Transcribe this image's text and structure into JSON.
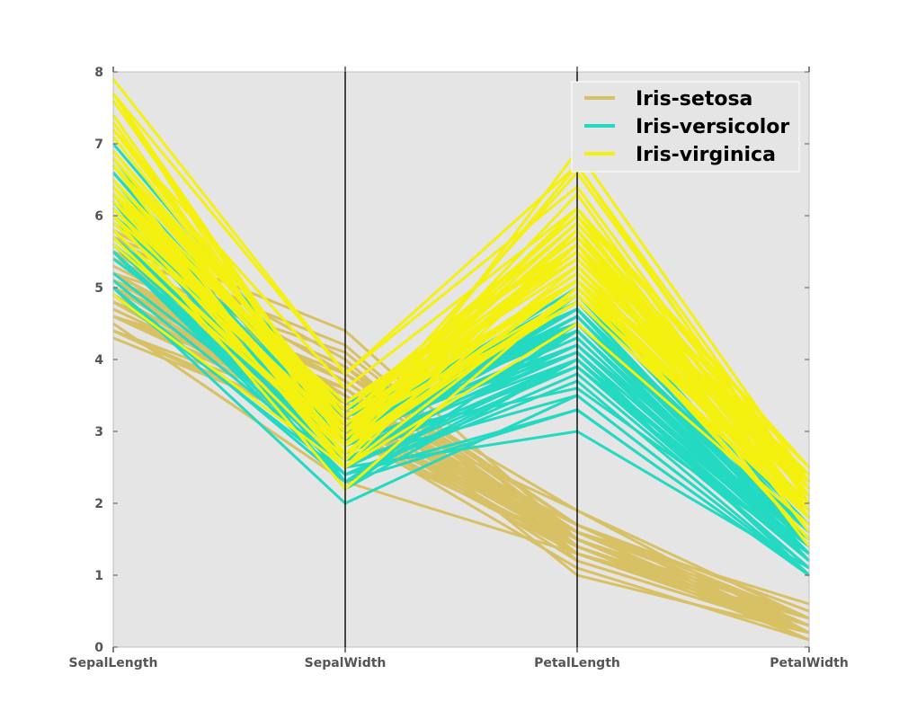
{
  "chart_data": {
    "type": "parallel-coordinates",
    "title": "",
    "axes": [
      "SepalLength",
      "SepalWidth",
      "PetalLength",
      "PetalWidth"
    ],
    "ylim": [
      0,
      8
    ],
    "yticks": [
      0,
      1,
      2,
      3,
      4,
      5,
      6,
      7,
      8
    ],
    "grid": false,
    "legend_position": "top-right",
    "background_color": "#e5e5e5",
    "series": [
      {
        "name": "Iris-setosa",
        "color": "#d8c065",
        "rows": [
          [
            5.1,
            3.5,
            1.4,
            0.2
          ],
          [
            4.9,
            3.0,
            1.4,
            0.2
          ],
          [
            4.7,
            3.2,
            1.3,
            0.2
          ],
          [
            4.6,
            3.1,
            1.5,
            0.2
          ],
          [
            5.0,
            3.6,
            1.4,
            0.2
          ],
          [
            5.4,
            3.9,
            1.7,
            0.4
          ],
          [
            4.6,
            3.4,
            1.4,
            0.3
          ],
          [
            5.0,
            3.4,
            1.5,
            0.2
          ],
          [
            4.4,
            2.9,
            1.4,
            0.2
          ],
          [
            4.9,
            3.1,
            1.5,
            0.1
          ],
          [
            5.4,
            3.7,
            1.5,
            0.2
          ],
          [
            4.8,
            3.4,
            1.6,
            0.2
          ],
          [
            4.8,
            3.0,
            1.4,
            0.1
          ],
          [
            4.3,
            3.0,
            1.1,
            0.1
          ],
          [
            5.8,
            4.0,
            1.2,
            0.2
          ],
          [
            5.7,
            4.4,
            1.5,
            0.4
          ],
          [
            5.4,
            3.9,
            1.3,
            0.4
          ],
          [
            5.1,
            3.5,
            1.4,
            0.3
          ],
          [
            5.7,
            3.8,
            1.7,
            0.3
          ],
          [
            5.1,
            3.8,
            1.5,
            0.3
          ],
          [
            5.4,
            3.4,
            1.7,
            0.2
          ],
          [
            5.1,
            3.7,
            1.5,
            0.4
          ],
          [
            4.6,
            3.6,
            1.0,
            0.2
          ],
          [
            5.1,
            3.3,
            1.7,
            0.5
          ],
          [
            4.8,
            3.4,
            1.9,
            0.2
          ],
          [
            5.0,
            3.0,
            1.6,
            0.2
          ],
          [
            5.0,
            3.4,
            1.6,
            0.4
          ],
          [
            5.2,
            3.5,
            1.5,
            0.2
          ],
          [
            5.2,
            3.4,
            1.4,
            0.2
          ],
          [
            4.7,
            3.2,
            1.6,
            0.2
          ],
          [
            4.8,
            3.1,
            1.6,
            0.2
          ],
          [
            5.4,
            3.4,
            1.5,
            0.4
          ],
          [
            5.2,
            4.1,
            1.5,
            0.1
          ],
          [
            5.5,
            4.2,
            1.4,
            0.2
          ],
          [
            4.9,
            3.1,
            1.5,
            0.1
          ],
          [
            5.0,
            3.2,
            1.2,
            0.2
          ],
          [
            5.5,
            3.5,
            1.3,
            0.2
          ],
          [
            4.4,
            3.0,
            1.3,
            0.2
          ],
          [
            5.1,
            3.4,
            1.5,
            0.2
          ],
          [
            5.0,
            3.5,
            1.3,
            0.3
          ],
          [
            4.5,
            2.3,
            1.3,
            0.3
          ],
          [
            4.4,
            3.2,
            1.3,
            0.2
          ],
          [
            5.0,
            3.5,
            1.6,
            0.6
          ],
          [
            5.1,
            3.8,
            1.9,
            0.4
          ],
          [
            4.8,
            3.0,
            1.4,
            0.3
          ],
          [
            5.1,
            3.8,
            1.6,
            0.2
          ],
          [
            4.6,
            3.2,
            1.4,
            0.2
          ],
          [
            5.3,
            3.7,
            1.5,
            0.2
          ],
          [
            5.0,
            3.3,
            1.4,
            0.2
          ]
        ]
      },
      {
        "name": "Iris-versicolor",
        "color": "#23d9c2",
        "rows": [
          [
            7.0,
            3.2,
            4.7,
            1.4
          ],
          [
            6.4,
            3.2,
            4.5,
            1.5
          ],
          [
            6.9,
            3.1,
            4.9,
            1.5
          ],
          [
            5.5,
            2.3,
            4.0,
            1.3
          ],
          [
            6.5,
            2.8,
            4.6,
            1.5
          ],
          [
            5.7,
            2.8,
            4.5,
            1.3
          ],
          [
            6.3,
            3.3,
            4.7,
            1.6
          ],
          [
            4.9,
            2.4,
            3.3,
            1.0
          ],
          [
            6.6,
            2.9,
            4.6,
            1.3
          ],
          [
            5.2,
            2.7,
            3.9,
            1.4
          ],
          [
            5.0,
            2.0,
            3.5,
            1.0
          ],
          [
            5.9,
            3.0,
            4.2,
            1.5
          ],
          [
            6.0,
            2.2,
            4.0,
            1.0
          ],
          [
            6.1,
            2.9,
            4.7,
            1.4
          ],
          [
            5.6,
            2.9,
            3.6,
            1.3
          ],
          [
            6.7,
            3.1,
            4.4,
            1.4
          ],
          [
            5.6,
            3.0,
            4.5,
            1.5
          ],
          [
            5.8,
            2.7,
            4.1,
            1.0
          ],
          [
            6.2,
            2.2,
            4.5,
            1.5
          ],
          [
            5.6,
            2.5,
            3.9,
            1.1
          ],
          [
            5.9,
            3.2,
            4.8,
            1.8
          ],
          [
            6.1,
            2.8,
            4.0,
            1.3
          ],
          [
            6.3,
            2.5,
            4.9,
            1.5
          ],
          [
            6.1,
            2.8,
            4.7,
            1.2
          ],
          [
            6.4,
            2.9,
            4.3,
            1.3
          ],
          [
            6.6,
            3.0,
            4.4,
            1.4
          ],
          [
            6.8,
            2.8,
            4.8,
            1.4
          ],
          [
            6.7,
            3.0,
            5.0,
            1.7
          ],
          [
            6.0,
            2.9,
            4.5,
            1.5
          ],
          [
            5.7,
            2.6,
            3.5,
            1.0
          ],
          [
            5.5,
            2.4,
            3.8,
            1.1
          ],
          [
            5.5,
            2.4,
            3.7,
            1.0
          ],
          [
            5.8,
            2.7,
            3.9,
            1.2
          ],
          [
            6.0,
            2.7,
            5.1,
            1.6
          ],
          [
            5.4,
            3.0,
            4.5,
            1.5
          ],
          [
            6.0,
            3.4,
            4.5,
            1.6
          ],
          [
            6.7,
            3.1,
            4.7,
            1.5
          ],
          [
            6.3,
            2.3,
            4.4,
            1.3
          ],
          [
            5.6,
            3.0,
            4.1,
            1.3
          ],
          [
            5.5,
            2.5,
            4.0,
            1.3
          ],
          [
            5.5,
            2.6,
            4.4,
            1.2
          ],
          [
            6.1,
            3.0,
            4.6,
            1.4
          ],
          [
            5.8,
            2.6,
            4.0,
            1.2
          ],
          [
            5.0,
            2.3,
            3.3,
            1.0
          ],
          [
            5.6,
            2.7,
            4.2,
            1.3
          ],
          [
            5.7,
            3.0,
            4.2,
            1.2
          ],
          [
            5.7,
            2.9,
            4.2,
            1.3
          ],
          [
            6.2,
            2.9,
            4.3,
            1.3
          ],
          [
            5.1,
            2.5,
            3.0,
            1.1
          ],
          [
            5.7,
            2.8,
            4.1,
            1.3
          ]
        ]
      },
      {
        "name": "Iris-virginica",
        "color": "#f4f00f",
        "rows": [
          [
            6.3,
            3.3,
            6.0,
            2.5
          ],
          [
            5.8,
            2.7,
            5.1,
            1.9
          ],
          [
            7.1,
            3.0,
            5.9,
            2.1
          ],
          [
            6.3,
            2.9,
            5.6,
            1.8
          ],
          [
            6.5,
            3.0,
            5.8,
            2.2
          ],
          [
            7.6,
            3.0,
            6.6,
            2.1
          ],
          [
            4.9,
            2.5,
            4.5,
            1.7
          ],
          [
            7.3,
            2.9,
            6.3,
            1.8
          ],
          [
            6.7,
            2.5,
            5.8,
            1.8
          ],
          [
            7.2,
            3.6,
            6.1,
            2.5
          ],
          [
            6.5,
            3.2,
            5.1,
            2.0
          ],
          [
            6.4,
            2.7,
            5.3,
            1.9
          ],
          [
            6.8,
            3.0,
            5.5,
            2.1
          ],
          [
            5.7,
            2.5,
            5.0,
            2.0
          ],
          [
            5.8,
            2.8,
            5.1,
            2.4
          ],
          [
            6.4,
            3.2,
            5.3,
            2.3
          ],
          [
            6.5,
            3.0,
            5.5,
            1.8
          ],
          [
            7.7,
            3.8,
            6.7,
            2.2
          ],
          [
            7.7,
            2.6,
            6.9,
            2.3
          ],
          [
            6.0,
            2.2,
            5.0,
            1.5
          ],
          [
            6.9,
            3.2,
            5.7,
            2.3
          ],
          [
            5.6,
            2.8,
            4.9,
            2.0
          ],
          [
            7.7,
            2.8,
            6.7,
            2.0
          ],
          [
            6.3,
            2.7,
            4.9,
            1.8
          ],
          [
            6.7,
            3.3,
            5.7,
            2.1
          ],
          [
            7.2,
            3.2,
            6.0,
            1.8
          ],
          [
            6.2,
            2.8,
            4.8,
            1.8
          ],
          [
            6.1,
            3.0,
            4.9,
            1.8
          ],
          [
            6.4,
            2.8,
            5.6,
            2.1
          ],
          [
            7.2,
            3.0,
            5.8,
            1.6
          ],
          [
            7.4,
            2.8,
            6.1,
            1.9
          ],
          [
            7.9,
            3.8,
            6.4,
            2.0
          ],
          [
            6.4,
            2.8,
            5.6,
            2.2
          ],
          [
            6.3,
            2.8,
            5.1,
            1.5
          ],
          [
            6.1,
            2.6,
            5.6,
            1.4
          ],
          [
            7.7,
            3.0,
            6.1,
            2.3
          ],
          [
            6.3,
            3.4,
            5.6,
            2.4
          ],
          [
            6.4,
            3.1,
            5.5,
            1.8
          ],
          [
            6.0,
            3.0,
            4.8,
            1.8
          ],
          [
            6.9,
            3.1,
            5.4,
            2.1
          ],
          [
            6.7,
            3.1,
            5.6,
            2.4
          ],
          [
            6.9,
            3.1,
            5.1,
            2.3
          ],
          [
            5.8,
            2.7,
            5.1,
            1.9
          ],
          [
            6.8,
            3.2,
            5.9,
            2.3
          ],
          [
            6.7,
            3.3,
            5.7,
            2.5
          ],
          [
            6.7,
            3.0,
            5.2,
            2.3
          ],
          [
            6.3,
            2.5,
            5.0,
            1.9
          ],
          [
            6.5,
            3.0,
            5.2,
            2.0
          ],
          [
            6.2,
            3.4,
            5.4,
            2.3
          ],
          [
            5.9,
            3.0,
            5.1,
            1.8
          ]
        ]
      }
    ]
  }
}
